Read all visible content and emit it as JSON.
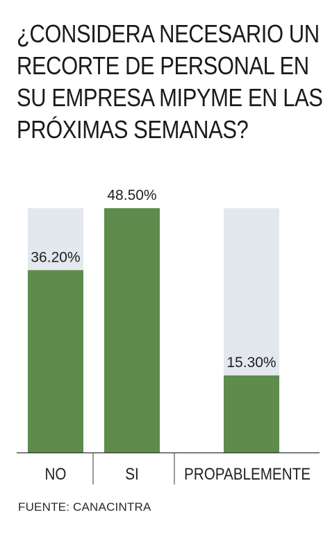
{
  "title_lines": [
    "¿CONSIDERA NECESARIO UN",
    "RECORTE DE PERSONAL EN",
    "SU EMPRESA MIPYME EN LAS",
    "PRÓXIMAS SEMANAS?"
  ],
  "source": "FUENTE: CANACINTRA",
  "colors": {
    "bar": "#5e8c4d",
    "track": "#e3e7ee",
    "axis": "#333333",
    "text": "#1f1f1f"
  },
  "chart_data": {
    "type": "bar",
    "categories": [
      "NO",
      "SI",
      "PROPABLEMENTE"
    ],
    "values": [
      36.2,
      48.5,
      15.3
    ],
    "data_labels": [
      "36.20%",
      "48.50%",
      "15.30%"
    ],
    "background_track": [
      true,
      false,
      true
    ],
    "ylim": [
      0,
      48.5
    ],
    "grid": false,
    "legend": "none"
  }
}
